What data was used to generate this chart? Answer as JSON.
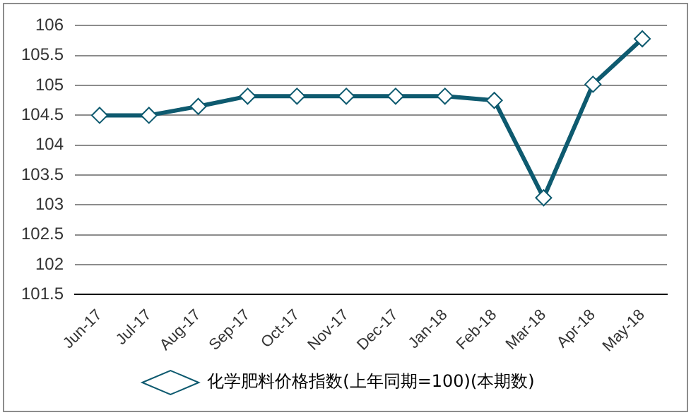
{
  "chart_data": {
    "type": "line",
    "categories": [
      "Jun-17",
      "Jul-17",
      "Aug-17",
      "Sep-17",
      "Oct-17",
      "Nov-17",
      "Dec-17",
      "Jan-18",
      "Feb-18",
      "Mar-18",
      "Apr-18",
      "May-18"
    ],
    "series": [
      {
        "name": "化学肥料价格指数(上年同期=100)(本期数)",
        "color": "#0e5a6f",
        "values": [
          104.5,
          104.5,
          104.65,
          104.82,
          104.82,
          104.82,
          104.82,
          104.82,
          104.75,
          103.12,
          105.02,
          105.78
        ]
      }
    ],
    "ylim": [
      101.5,
      106
    ],
    "yticks": [
      101.5,
      102,
      102.5,
      103,
      103.5,
      104,
      104.5,
      105,
      105.5,
      106
    ],
    "grid": "y",
    "legend": "bottom",
    "marker": "diamond",
    "line_style": "solid"
  }
}
